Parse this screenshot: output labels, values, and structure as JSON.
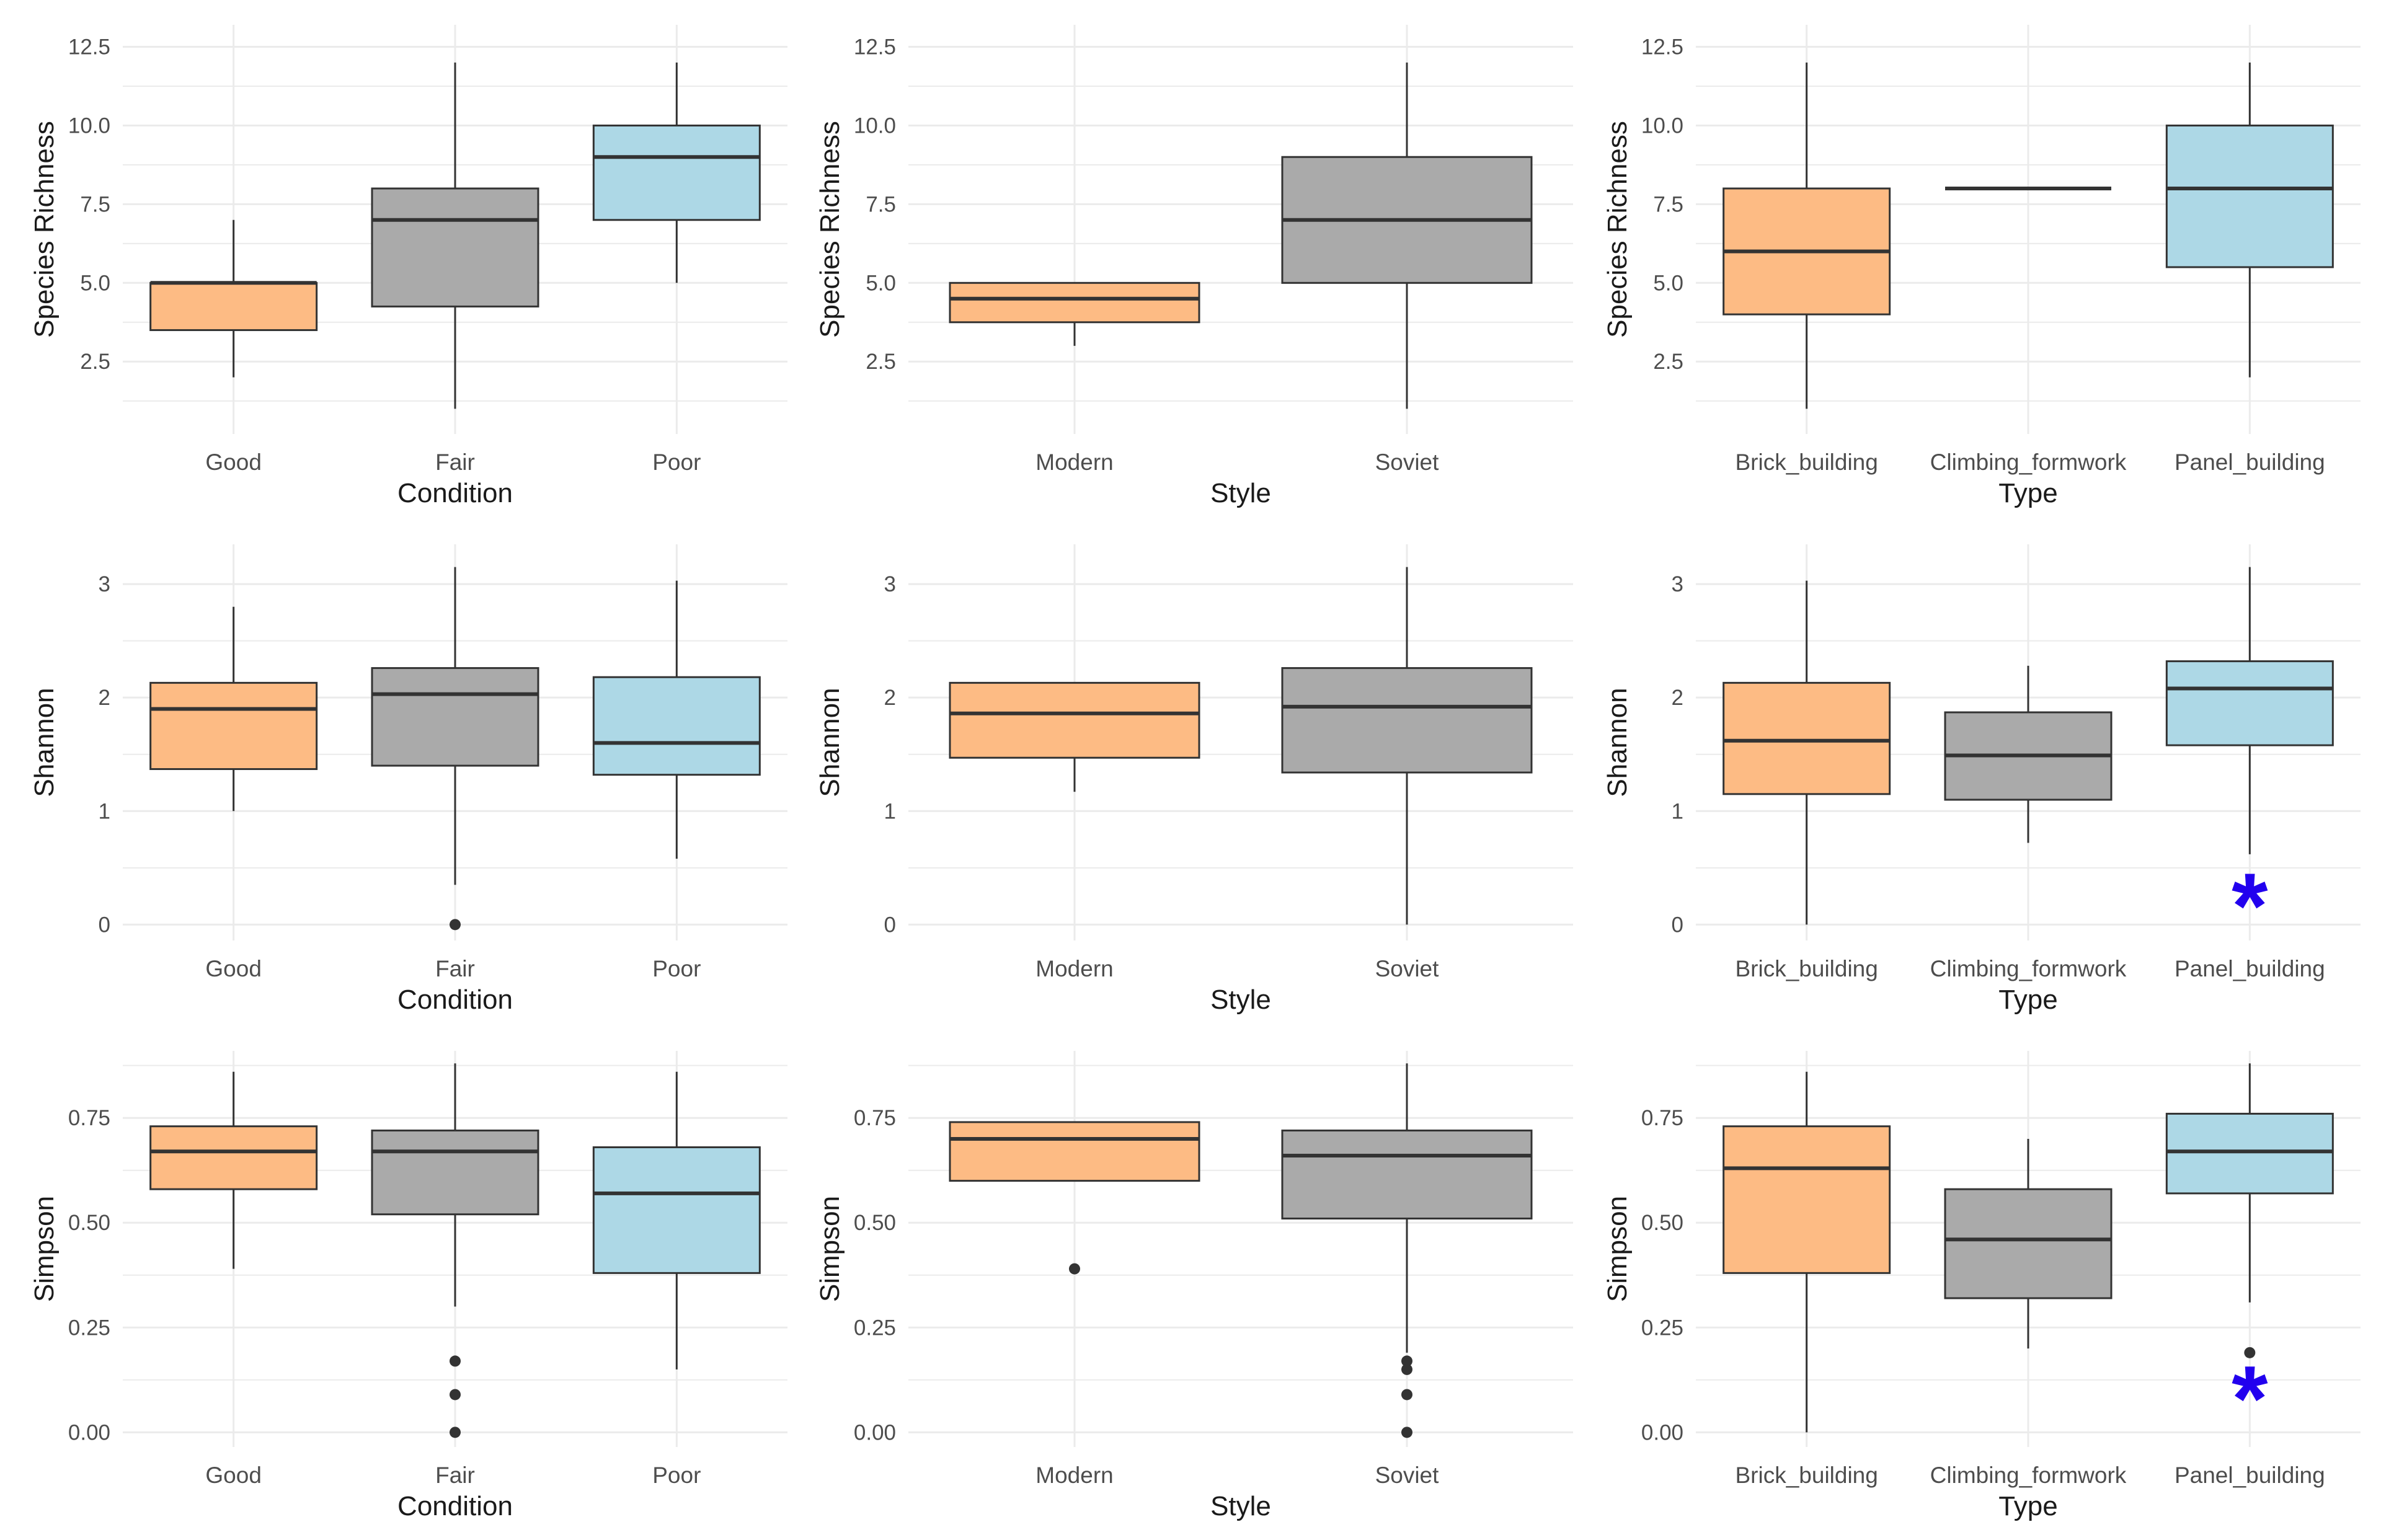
{
  "colors": {
    "orange": "#fdbb84",
    "grey": "#aaaaaa",
    "blue": "#add8e6",
    "stroke": "#333333",
    "grid": "#ebebeb",
    "tick": "#4d4d4d",
    "label": "#1a1a1a",
    "star": "#2200ee"
  },
  "chart_data": [
    {
      "type": "boxplot",
      "xlabel": "Condition",
      "ylabel": "Species Richness",
      "categories": [
        "Good",
        "Fair",
        "Poor"
      ],
      "fills": [
        "orange",
        "grey",
        "blue"
      ],
      "ylim": [
        0.2,
        13.2
      ],
      "yticks": [
        2.5,
        5.0,
        7.5,
        10.0,
        12.5
      ],
      "yticklabels": [
        "2.5",
        "5.0",
        "7.5",
        "10.0",
        "12.5"
      ],
      "boxes": [
        {
          "lower_whisker": 2,
          "q1": 3.5,
          "median": 5,
          "q3": 5,
          "upper_whisker": 7,
          "outliers": []
        },
        {
          "lower_whisker": 1,
          "q1": 4.25,
          "median": 7,
          "q3": 8,
          "upper_whisker": 12,
          "outliers": []
        },
        {
          "lower_whisker": 5,
          "q1": 7,
          "median": 9,
          "q3": 10,
          "upper_whisker": 12,
          "outliers": []
        }
      ],
      "annotations": []
    },
    {
      "type": "boxplot",
      "xlabel": "Style",
      "ylabel": "Species Richness",
      "categories": [
        "Modern",
        "Soviet"
      ],
      "fills": [
        "orange",
        "grey"
      ],
      "ylim": [
        0.2,
        13.2
      ],
      "yticks": [
        2.5,
        5.0,
        7.5,
        10.0,
        12.5
      ],
      "yticklabels": [
        "2.5",
        "5.0",
        "7.5",
        "10.0",
        "12.5"
      ],
      "boxes": [
        {
          "lower_whisker": 3,
          "q1": 3.75,
          "median": 4.5,
          "q3": 5,
          "upper_whisker": 5,
          "outliers": []
        },
        {
          "lower_whisker": 1,
          "q1": 5,
          "median": 7,
          "q3": 9,
          "upper_whisker": 12,
          "outliers": []
        }
      ],
      "annotations": []
    },
    {
      "type": "boxplot",
      "xlabel": "Type",
      "ylabel": "Species Richness",
      "categories": [
        "Brick_building",
        "Climbing_formwork",
        "Panel_building"
      ],
      "fills": [
        "orange",
        "grey",
        "blue"
      ],
      "ylim": [
        0.2,
        13.2
      ],
      "yticks": [
        2.5,
        5.0,
        7.5,
        10.0,
        12.5
      ],
      "yticklabels": [
        "2.5",
        "5.0",
        "7.5",
        "10.0",
        "12.5"
      ],
      "boxes": [
        {
          "lower_whisker": 1,
          "q1": 4,
          "median": 6,
          "q3": 8,
          "upper_whisker": 12,
          "outliers": []
        },
        {
          "lower_whisker": 8,
          "q1": 8,
          "median": 8,
          "q3": 8,
          "upper_whisker": 8,
          "outliers": []
        },
        {
          "lower_whisker": 2,
          "q1": 5.5,
          "median": 8,
          "q3": 10,
          "upper_whisker": 12,
          "outliers": []
        }
      ],
      "annotations": []
    },
    {
      "type": "boxplot",
      "xlabel": "Condition",
      "ylabel": "Shannon",
      "categories": [
        "Good",
        "Fair",
        "Poor"
      ],
      "fills": [
        "orange",
        "grey",
        "blue"
      ],
      "ylim": [
        -0.14,
        3.35
      ],
      "yticks": [
        0,
        1,
        2,
        3
      ],
      "yticklabels": [
        "0",
        "1",
        "2",
        "3"
      ],
      "boxes": [
        {
          "lower_whisker": 1.0,
          "q1": 1.37,
          "median": 1.9,
          "q3": 2.13,
          "upper_whisker": 2.8,
          "outliers": []
        },
        {
          "lower_whisker": 0.35,
          "q1": 1.4,
          "median": 2.03,
          "q3": 2.26,
          "upper_whisker": 3.15,
          "outliers": [
            0
          ]
        },
        {
          "lower_whisker": 0.58,
          "q1": 1.32,
          "median": 1.6,
          "q3": 2.18,
          "upper_whisker": 3.03,
          "outliers": []
        }
      ],
      "annotations": []
    },
    {
      "type": "boxplot",
      "xlabel": "Style",
      "ylabel": "Shannon",
      "categories": [
        "Modern",
        "Soviet"
      ],
      "fills": [
        "orange",
        "grey"
      ],
      "ylim": [
        -0.14,
        3.35
      ],
      "yticks": [
        0,
        1,
        2,
        3
      ],
      "yticklabels": [
        "0",
        "1",
        "2",
        "3"
      ],
      "boxes": [
        {
          "lower_whisker": 1.17,
          "q1": 1.47,
          "median": 1.86,
          "q3": 2.13,
          "upper_whisker": 2.13,
          "outliers": []
        },
        {
          "lower_whisker": 0.0,
          "q1": 1.34,
          "median": 1.92,
          "q3": 2.26,
          "upper_whisker": 3.15,
          "outliers": []
        }
      ],
      "annotations": []
    },
    {
      "type": "boxplot",
      "xlabel": "Type",
      "ylabel": "Shannon",
      "categories": [
        "Brick_building",
        "Climbing_formwork",
        "Panel_building"
      ],
      "fills": [
        "orange",
        "grey",
        "blue"
      ],
      "ylim": [
        -0.14,
        3.35
      ],
      "yticks": [
        0,
        1,
        2,
        3
      ],
      "yticklabels": [
        "0",
        "1",
        "2",
        "3"
      ],
      "boxes": [
        {
          "lower_whisker": 0.0,
          "q1": 1.15,
          "median": 1.62,
          "q3": 2.13,
          "upper_whisker": 3.03,
          "outliers": []
        },
        {
          "lower_whisker": 0.72,
          "q1": 1.1,
          "median": 1.49,
          "q3": 1.87,
          "upper_whisker": 2.28,
          "outliers": []
        },
        {
          "lower_whisker": 0.62,
          "q1": 1.58,
          "median": 2.08,
          "q3": 2.32,
          "upper_whisker": 3.15,
          "outliers": []
        }
      ],
      "annotations": [
        {
          "category_index": 2,
          "y": 0.2,
          "symbol": "*"
        }
      ]
    },
    {
      "type": "boxplot",
      "xlabel": "Condition",
      "ylabel": "Simpson",
      "categories": [
        "Good",
        "Fair",
        "Poor"
      ],
      "fills": [
        "orange",
        "grey",
        "blue"
      ],
      "ylim": [
        -0.035,
        0.91
      ],
      "yticks": [
        0.0,
        0.25,
        0.5,
        0.75
      ],
      "yticklabels": [
        "0.00",
        "0.25",
        "0.50",
        "0.75"
      ],
      "boxes": [
        {
          "lower_whisker": 0.39,
          "q1": 0.58,
          "median": 0.67,
          "q3": 0.73,
          "upper_whisker": 0.86,
          "outliers": []
        },
        {
          "lower_whisker": 0.3,
          "q1": 0.52,
          "median": 0.67,
          "q3": 0.72,
          "upper_whisker": 0.88,
          "outliers": [
            0.17,
            0.09,
            0.0
          ]
        },
        {
          "lower_whisker": 0.15,
          "q1": 0.38,
          "median": 0.57,
          "q3": 0.68,
          "upper_whisker": 0.86,
          "outliers": []
        }
      ],
      "annotations": []
    },
    {
      "type": "boxplot",
      "xlabel": "Style",
      "ylabel": "Simpson",
      "categories": [
        "Modern",
        "Soviet"
      ],
      "fills": [
        "orange",
        "grey"
      ],
      "ylim": [
        -0.035,
        0.91
      ],
      "yticks": [
        0.0,
        0.25,
        0.5,
        0.75
      ],
      "yticklabels": [
        "0.00",
        "0.25",
        "0.50",
        "0.75"
      ],
      "boxes": [
        {
          "lower_whisker": 0.6,
          "q1": 0.6,
          "median": 0.7,
          "q3": 0.74,
          "upper_whisker": 0.74,
          "outliers": [
            0.39
          ]
        },
        {
          "lower_whisker": 0.19,
          "q1": 0.51,
          "median": 0.66,
          "q3": 0.72,
          "upper_whisker": 0.88,
          "outliers": [
            0.17,
            0.15,
            0.09,
            0.0
          ]
        }
      ],
      "annotations": []
    },
    {
      "type": "boxplot",
      "xlabel": "Type",
      "ylabel": "Simpson",
      "categories": [
        "Brick_building",
        "Climbing_formwork",
        "Panel_building"
      ],
      "fills": [
        "orange",
        "grey",
        "blue"
      ],
      "ylim": [
        -0.035,
        0.91
      ],
      "yticks": [
        0.0,
        0.25,
        0.5,
        0.75
      ],
      "yticklabels": [
        "0.00",
        "0.25",
        "0.50",
        "0.75"
      ],
      "boxes": [
        {
          "lower_whisker": 0.0,
          "q1": 0.38,
          "median": 0.63,
          "q3": 0.73,
          "upper_whisker": 0.86,
          "outliers": []
        },
        {
          "lower_whisker": 0.2,
          "q1": 0.32,
          "median": 0.46,
          "q3": 0.58,
          "upper_whisker": 0.7,
          "outliers": []
        },
        {
          "lower_whisker": 0.31,
          "q1": 0.57,
          "median": 0.67,
          "q3": 0.76,
          "upper_whisker": 0.88,
          "outliers": [
            0.19
          ]
        }
      ],
      "annotations": [
        {
          "category_index": 2,
          "y": 0.09,
          "symbol": "*"
        }
      ]
    }
  ]
}
